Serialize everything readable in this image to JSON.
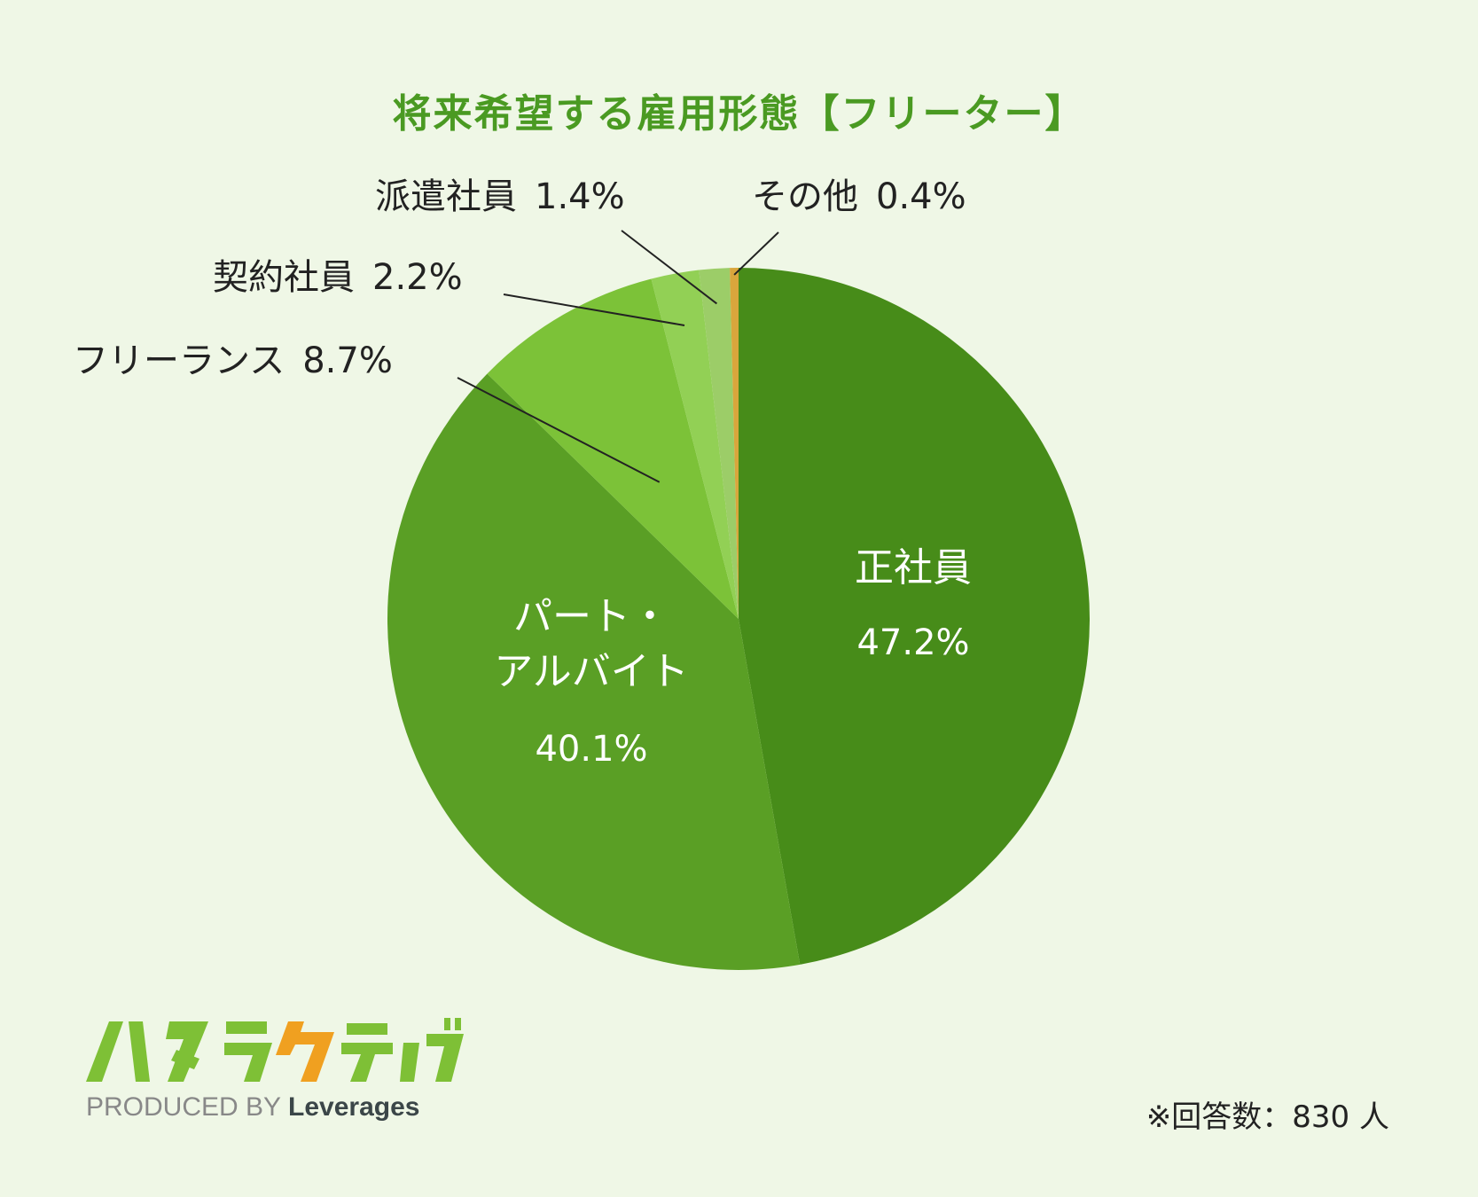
{
  "chart_data": {
    "type": "pie",
    "title": "将来希望する雇用形態【フリーター】",
    "slices": [
      {
        "label": "正社員",
        "value": 47.2,
        "display": "47.2%",
        "color": "#478c19"
      },
      {
        "label": "パート・アルバイト",
        "label_lines": [
          "パート・",
          "アルバイト"
        ],
        "value": 40.1,
        "display": "40.1%",
        "color": "#5a9f25"
      },
      {
        "label": "フリーランス",
        "value": 8.7,
        "display": "8.7%",
        "color": "#7cc238"
      },
      {
        "label": "契約社員",
        "value": 2.2,
        "display": "2.2%",
        "color": "#92d055"
      },
      {
        "label": "派遣社員",
        "value": 1.4,
        "display": "1.4%",
        "color": "#9ccd68"
      },
      {
        "label": "その他",
        "value": 0.4,
        "display": "0.4%",
        "color": "#d9a63c"
      }
    ],
    "start": "top",
    "direction": "clockwise"
  },
  "brand": {
    "logo_text": "ハタラクティブ",
    "produced_by": "PRODUCED BY",
    "company": "Leverages",
    "logo_colors": [
      "#7ec036",
      "#7ec036",
      "#7ec036",
      "#f0a020",
      "#7ec036",
      "#7ec036"
    ]
  },
  "footnote": "※回答数：830 人"
}
